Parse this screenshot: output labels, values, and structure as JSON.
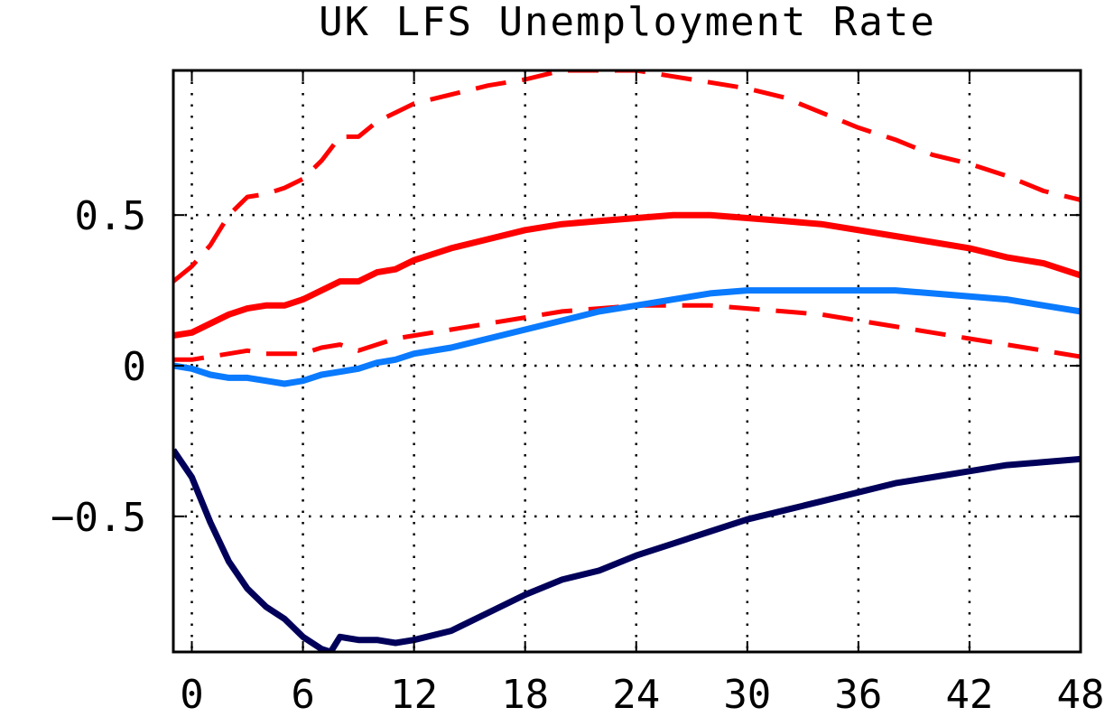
{
  "chart_data": {
    "type": "line",
    "title": "UK LFS Unemployment Rate",
    "xlabel": "",
    "ylabel": "",
    "xlim": [
      -1,
      48
    ],
    "ylim": [
      -0.95,
      0.98
    ],
    "grid": true,
    "legend": "none",
    "x_ticks": [
      0,
      6,
      12,
      18,
      24,
      30,
      36,
      42,
      48
    ],
    "x_tick_labels": [
      "0",
      "6",
      "12",
      "18",
      "24",
      "30",
      "36",
      "42",
      "48"
    ],
    "y_ticks": [
      -0.5,
      0,
      0.5
    ],
    "y_tick_labels": [
      "−0.5",
      "0",
      "0.5"
    ],
    "series": [
      {
        "color": "#ff0000",
        "style": "dashed",
        "x": [
          -1,
          0,
          1,
          2,
          3,
          4,
          5,
          6,
          7,
          8,
          9,
          10,
          11,
          12,
          14,
          16,
          18,
          20,
          22,
          24,
          26,
          28,
          30,
          32,
          34,
          36,
          38,
          40,
          42,
          44,
          46,
          48
        ],
        "y": [
          0.28,
          0.33,
          0.4,
          0.5,
          0.56,
          0.57,
          0.59,
          0.62,
          0.68,
          0.76,
          0.76,
          0.81,
          0.84,
          0.87,
          0.9,
          0.93,
          0.95,
          0.98,
          0.98,
          0.98,
          0.96,
          0.94,
          0.92,
          0.89,
          0.84,
          0.79,
          0.75,
          0.7,
          0.67,
          0.63,
          0.58,
          0.55
        ]
      },
      {
        "color": "#ff0000",
        "style": "solid",
        "x": [
          -1,
          0,
          1,
          2,
          3,
          4,
          5,
          6,
          7,
          8,
          9,
          10,
          11,
          12,
          14,
          16,
          18,
          20,
          22,
          24,
          26,
          28,
          30,
          32,
          34,
          36,
          38,
          40,
          42,
          44,
          46,
          48
        ],
        "y": [
          0.1,
          0.11,
          0.14,
          0.17,
          0.19,
          0.2,
          0.2,
          0.22,
          0.25,
          0.28,
          0.28,
          0.31,
          0.32,
          0.35,
          0.39,
          0.42,
          0.45,
          0.47,
          0.48,
          0.49,
          0.5,
          0.5,
          0.49,
          0.48,
          0.47,
          0.45,
          0.43,
          0.41,
          0.39,
          0.36,
          0.34,
          0.3
        ]
      },
      {
        "color": "#ff0000",
        "style": "dashed",
        "x": [
          -1,
          0,
          1,
          2,
          3,
          4,
          5,
          6,
          7,
          8,
          9,
          10,
          11,
          12,
          14,
          16,
          18,
          20,
          22,
          24,
          26,
          28,
          30,
          32,
          34,
          36,
          38,
          40,
          42,
          44,
          46,
          48
        ],
        "y": [
          0.02,
          0.02,
          0.03,
          0.04,
          0.05,
          0.04,
          0.04,
          0.04,
          0.06,
          0.07,
          0.05,
          0.07,
          0.09,
          0.1,
          0.12,
          0.14,
          0.16,
          0.18,
          0.19,
          0.2,
          0.2,
          0.2,
          0.19,
          0.18,
          0.17,
          0.15,
          0.13,
          0.11,
          0.09,
          0.07,
          0.05,
          0.03
        ]
      },
      {
        "color": "#0a7aff",
        "style": "solid",
        "x": [
          -1,
          0,
          1,
          2,
          3,
          4,
          5,
          6,
          7,
          8,
          9,
          10,
          11,
          12,
          14,
          16,
          18,
          20,
          22,
          24,
          26,
          28,
          30,
          32,
          34,
          36,
          38,
          40,
          42,
          44,
          46,
          48
        ],
        "y": [
          0.0,
          -0.01,
          -0.03,
          -0.04,
          -0.04,
          -0.05,
          -0.06,
          -0.05,
          -0.03,
          -0.02,
          -0.01,
          0.01,
          0.02,
          0.04,
          0.06,
          0.09,
          0.12,
          0.15,
          0.18,
          0.2,
          0.22,
          0.24,
          0.25,
          0.25,
          0.25,
          0.25,
          0.25,
          0.24,
          0.23,
          0.22,
          0.2,
          0.18
        ]
      },
      {
        "color": "#00005a",
        "style": "solid",
        "x": [
          -1,
          0,
          1,
          2,
          3,
          4,
          5,
          6,
          7,
          7.5,
          8,
          9,
          10,
          11,
          12,
          14,
          16,
          18,
          20,
          22,
          24,
          26,
          28,
          30,
          32,
          34,
          36,
          38,
          40,
          42,
          44,
          46,
          48
        ],
        "y": [
          -0.28,
          -0.37,
          -0.52,
          -0.65,
          -0.74,
          -0.8,
          -0.84,
          -0.9,
          -0.94,
          -0.95,
          -0.9,
          -0.91,
          -0.91,
          -0.92,
          -0.91,
          -0.88,
          -0.82,
          -0.76,
          -0.71,
          -0.68,
          -0.63,
          -0.59,
          -0.55,
          -0.51,
          -0.48,
          -0.45,
          -0.42,
          -0.39,
          -0.37,
          -0.35,
          -0.33,
          -0.32,
          -0.31
        ]
      }
    ]
  }
}
